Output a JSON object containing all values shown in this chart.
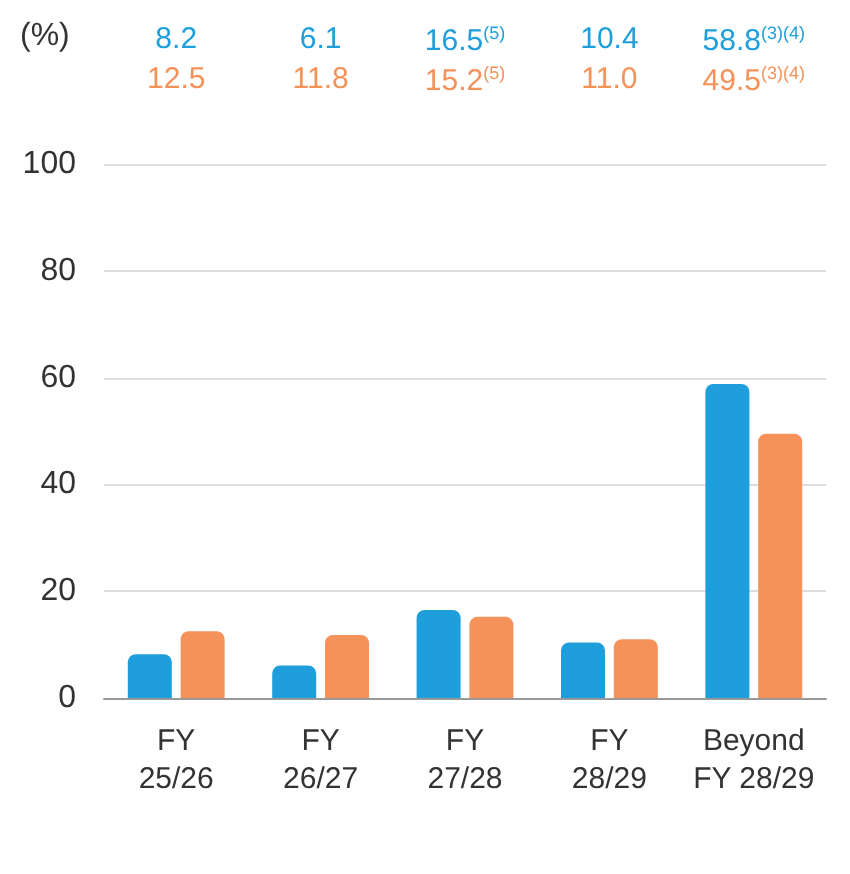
{
  "chart_data": {
    "type": "bar",
    "ylabel": "(%)",
    "categories": [
      "FY\n25/26",
      "FY\n26/27",
      "FY\n27/28",
      "FY\n28/29",
      "Beyond\nFY 28/29"
    ],
    "series": [
      {
        "color": "#1e9fdc",
        "values": [
          8.2,
          6.1,
          16.5,
          10.4,
          58.8
        ],
        "value_labels": [
          "8.2",
          "6.1",
          "16.5$^{(5)}$",
          "10.4",
          "58.8$^{(3)(4)}$"
        ]
      },
      {
        "color": "#f5925a",
        "values": [
          12.5,
          11.8,
          15.2,
          11.0,
          49.5
        ],
        "value_labels": [
          "12.5",
          "11.8",
          "15.2$^{(5)}$",
          "11.0",
          "49.5$^{(3)(4)}$"
        ]
      }
    ],
    "ylim": [
      0,
      100
    ],
    "yticks": [
      0,
      20,
      40,
      60,
      80,
      100
    ],
    "grid": "y"
  }
}
